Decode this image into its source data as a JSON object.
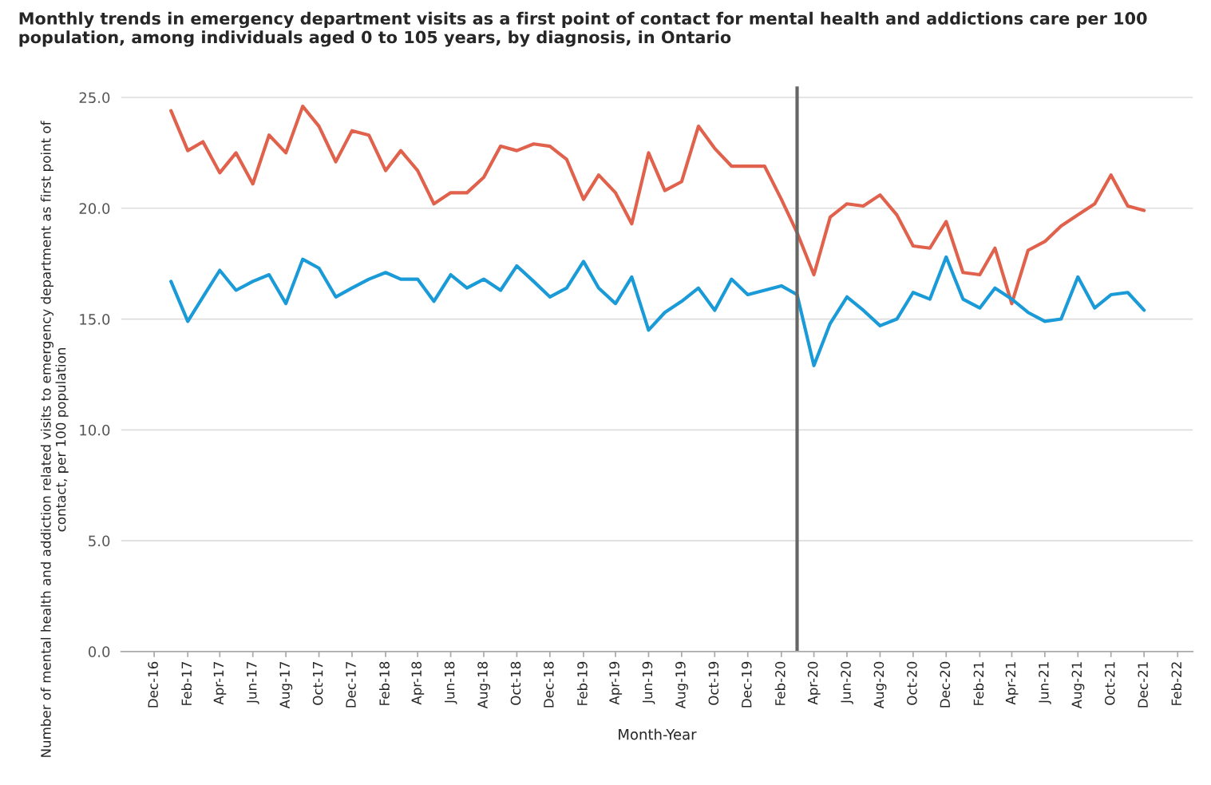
{
  "chart_data": {
    "type": "line",
    "title": "Monthly trends in emergency department visits as a first point of contact for mental health and addictions care per 100 population, among individuals aged 0 to 105 years, by diagnosis, in Ontario",
    "xlabel": "Month-Year",
    "ylabel": "Number of mental health and addiction related visits to emergency department as first point of contact, per 100 population",
    "x": [
      "2017-01",
      "2017-02",
      "2017-03",
      "2017-04",
      "2017-05",
      "2017-06",
      "2017-07",
      "2017-08",
      "2017-09",
      "2017-10",
      "2017-11",
      "2017-12",
      "2018-01",
      "2018-02",
      "2018-03",
      "2018-04",
      "2018-05",
      "2018-06",
      "2018-07",
      "2018-08",
      "2018-09",
      "2018-10",
      "2018-11",
      "2018-12",
      "2019-01",
      "2019-02",
      "2019-03",
      "2019-04",
      "2019-05",
      "2019-06",
      "2019-07",
      "2019-08",
      "2019-09",
      "2019-10",
      "2019-11",
      "2019-12",
      "2020-01",
      "2020-02",
      "2020-03",
      "2020-04",
      "2020-05",
      "2020-06",
      "2020-07",
      "2020-08",
      "2020-09",
      "2020-10",
      "2020-11",
      "2020-12",
      "2021-01",
      "2021-02",
      "2021-03",
      "2021-04",
      "2021-05",
      "2021-06",
      "2021-07",
      "2021-08",
      "2021-09",
      "2021-10",
      "2021-11",
      "2021-12"
    ],
    "series": [
      {
        "color": "#e0624c",
        "values": [
          24.4,
          22.6,
          23.0,
          21.6,
          22.5,
          21.1,
          23.3,
          22.5,
          24.6,
          23.7,
          22.1,
          23.5,
          23.3,
          21.7,
          22.6,
          21.7,
          20.2,
          20.7,
          20.7,
          21.4,
          22.8,
          22.6,
          22.9,
          22.8,
          22.2,
          20.4,
          21.5,
          20.7,
          19.3,
          22.5,
          20.8,
          21.2,
          23.7,
          22.7,
          21.9,
          21.9,
          21.9,
          20.4,
          18.9,
          17.0,
          19.6,
          20.2,
          20.1,
          20.6,
          19.7,
          18.3,
          18.2,
          19.4,
          17.1,
          17.0,
          18.2,
          15.7,
          18.1,
          18.5,
          19.2,
          19.7,
          20.2,
          21.5,
          20.1,
          19.9
        ]
      },
      {
        "color": "#1a9bd7",
        "values": [
          16.7,
          14.9,
          16.0,
          17.2,
          16.3,
          16.7,
          17.0,
          15.7,
          17.7,
          17.3,
          16.0,
          16.4,
          16.8,
          17.1,
          16.8,
          16.8,
          15.8,
          17.0,
          16.4,
          16.8,
          16.3,
          17.4,
          16.7,
          16.0,
          16.4,
          17.6,
          16.4,
          15.7,
          16.9,
          14.5,
          15.3,
          15.8,
          16.4,
          15.4,
          16.8,
          16.1,
          16.3,
          16.5,
          16.1,
          12.9,
          14.8,
          16.0,
          15.4,
          14.7,
          15.0,
          16.2,
          15.9,
          17.8,
          15.9,
          15.5,
          16.4,
          15.9,
          15.3,
          14.9,
          15.0,
          16.9,
          15.5,
          16.1,
          16.2,
          15.4
        ]
      }
    ],
    "xlim": [
      "2016-10-01",
      "2022-03-01"
    ],
    "xticks": [
      {
        "value": "2016-12",
        "label": "Dec-16"
      },
      {
        "value": "2017-02",
        "label": "Feb-17"
      },
      {
        "value": "2017-04",
        "label": "Apr-17"
      },
      {
        "value": "2017-06",
        "label": "Jun-17"
      },
      {
        "value": "2017-08",
        "label": "Aug-17"
      },
      {
        "value": "2017-10",
        "label": "Oct-17"
      },
      {
        "value": "2017-12",
        "label": "Dec-17"
      },
      {
        "value": "2018-02",
        "label": "Feb-18"
      },
      {
        "value": "2018-04",
        "label": "Apr-18"
      },
      {
        "value": "2018-06",
        "label": "Jun-18"
      },
      {
        "value": "2018-08",
        "label": "Aug-18"
      },
      {
        "value": "2018-10",
        "label": "Oct-18"
      },
      {
        "value": "2018-12",
        "label": "Dec-18"
      },
      {
        "value": "2019-02",
        "label": "Feb-19"
      },
      {
        "value": "2019-04",
        "label": "Apr-19"
      },
      {
        "value": "2019-06",
        "label": "Jun-19"
      },
      {
        "value": "2019-08",
        "label": "Aug-19"
      },
      {
        "value": "2019-10",
        "label": "Oct-19"
      },
      {
        "value": "2019-12",
        "label": "Dec-19"
      },
      {
        "value": "2020-02",
        "label": "Feb-20"
      },
      {
        "value": "2020-04",
        "label": "Apr-20"
      },
      {
        "value": "2020-06",
        "label": "Jun-20"
      },
      {
        "value": "2020-08",
        "label": "Aug-20"
      },
      {
        "value": "2020-10",
        "label": "Oct-20"
      },
      {
        "value": "2020-12",
        "label": "Dec-20"
      },
      {
        "value": "2021-02",
        "label": "Feb-21"
      },
      {
        "value": "2021-04",
        "label": "Apr-21"
      },
      {
        "value": "2021-06",
        "label": "Jun-21"
      },
      {
        "value": "2021-08",
        "label": "Aug-21"
      },
      {
        "value": "2021-10",
        "label": "Oct-21"
      },
      {
        "value": "2021-12",
        "label": "Dec-21"
      },
      {
        "value": "2022-02",
        "label": "Feb-22"
      }
    ],
    "ylim": [
      0,
      25.5
    ],
    "yticks": [
      {
        "value": 0,
        "label": "0.0"
      },
      {
        "value": 5,
        "label": "5.0"
      },
      {
        "value": 10,
        "label": "10.0"
      },
      {
        "value": 15,
        "label": "15.0"
      },
      {
        "value": 20,
        "label": "20.0"
      },
      {
        "value": 25,
        "label": "25.0"
      }
    ],
    "ref_lines": [
      {
        "axis": "x",
        "value": "2020-03",
        "color": "#666666"
      }
    ],
    "grid": "y",
    "line_style": "solid",
    "marker": "none"
  }
}
